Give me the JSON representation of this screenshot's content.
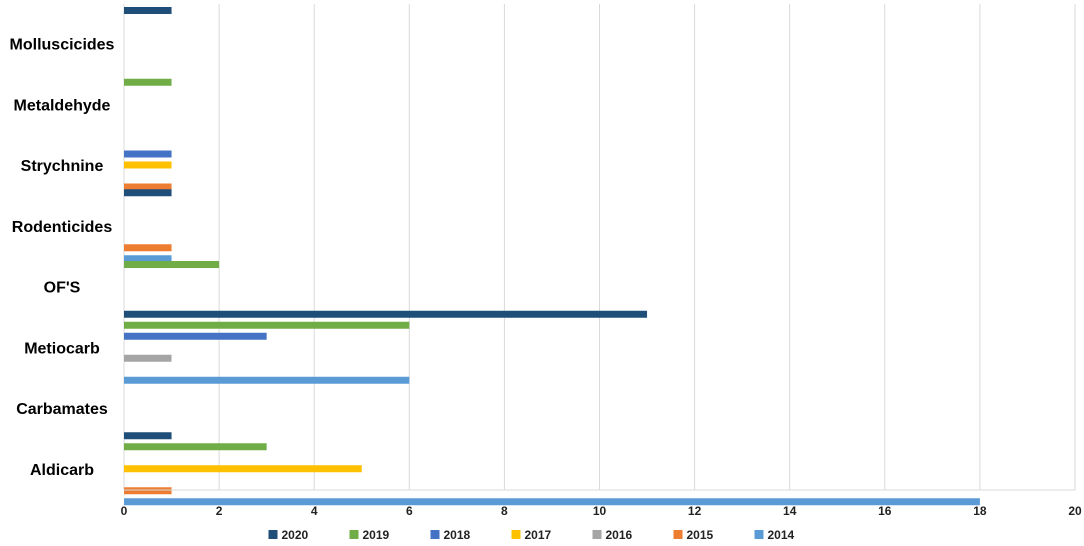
{
  "chart_data": {
    "type": "bar",
    "orientation": "horizontal",
    "categories": [
      "Molluscicides",
      "Metaldehyde",
      "Strychnine",
      "Rodenticides",
      "OF'S",
      "Metiocarb",
      "Carbamates",
      "Aldicarb"
    ],
    "series": [
      {
        "name": "2020",
        "color": "#1F4E79",
        "values": [
          1,
          null,
          null,
          1,
          null,
          11,
          null,
          1
        ]
      },
      {
        "name": "2019",
        "color": "#70AD47",
        "values": [
          null,
          1,
          null,
          null,
          2,
          6,
          null,
          3
        ]
      },
      {
        "name": "2018",
        "color": "#4472C4",
        "values": [
          null,
          null,
          1,
          null,
          null,
          3,
          null,
          null
        ]
      },
      {
        "name": "2017",
        "color": "#FFC000",
        "values": [
          null,
          null,
          1,
          null,
          null,
          null,
          null,
          5
        ]
      },
      {
        "name": "2016",
        "color": "#A5A5A5",
        "values": [
          null,
          null,
          null,
          null,
          null,
          1,
          null,
          null
        ]
      },
      {
        "name": "2015",
        "color": "#ED7D31",
        "values": [
          null,
          null,
          1,
          1,
          null,
          null,
          null,
          1
        ]
      },
      {
        "name": "2014",
        "color": "#5B9BD5",
        "values": [
          null,
          null,
          null,
          1,
          null,
          6,
          null,
          18
        ]
      }
    ],
    "xlim": [
      0,
      20
    ],
    "xticks": [
      "0",
      "2",
      "4",
      "6",
      "8",
      "10",
      "12",
      "14",
      "16",
      "18",
      "20"
    ],
    "grid": true,
    "legend_position": "bottom"
  }
}
